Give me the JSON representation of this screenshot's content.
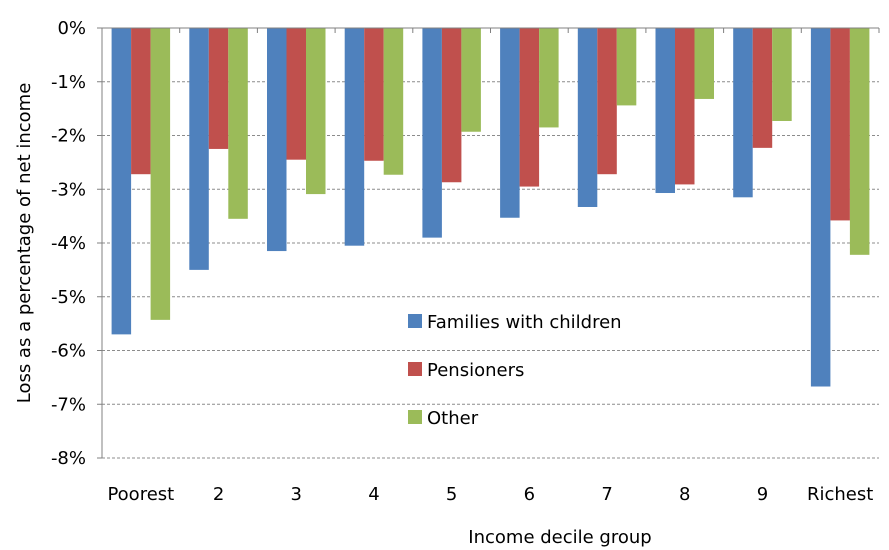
{
  "chart_data": {
    "type": "bar",
    "xlabel": "Income decile group",
    "ylabel": "Loss as a percentage of net income",
    "categories": [
      "Poorest",
      "2",
      "3",
      "4",
      "5",
      "6",
      "7",
      "8",
      "9",
      "Richest"
    ],
    "ylim": [
      -8,
      0
    ],
    "yticks": [
      0,
      -1,
      -2,
      -3,
      -4,
      -5,
      -6,
      -7,
      -8
    ],
    "ytick_labels": [
      "0%",
      "-1%",
      "-2%",
      "-3%",
      "-4%",
      "-5%",
      "-6%",
      "-7%",
      "-8%"
    ],
    "grid": "horizontal dashed",
    "legend_position": "center",
    "series": [
      {
        "name": "Families with children",
        "color": "#4F81BD",
        "values": [
          -5.7,
          -4.5,
          -4.15,
          -4.05,
          -3.9,
          -3.53,
          -3.33,
          -3.07,
          -3.15,
          -6.67
        ]
      },
      {
        "name": "Pensioners",
        "color": "#C0504D",
        "values": [
          -2.72,
          -2.25,
          -2.45,
          -2.47,
          -2.87,
          -2.95,
          -2.72,
          -2.91,
          -2.23,
          -3.58
        ]
      },
      {
        "name": "Other",
        "color": "#9BBB59",
        "values": [
          -5.43,
          -3.55,
          -3.09,
          -2.73,
          -1.93,
          -1.85,
          -1.44,
          -1.32,
          -1.73,
          -4.22
        ]
      }
    ]
  }
}
